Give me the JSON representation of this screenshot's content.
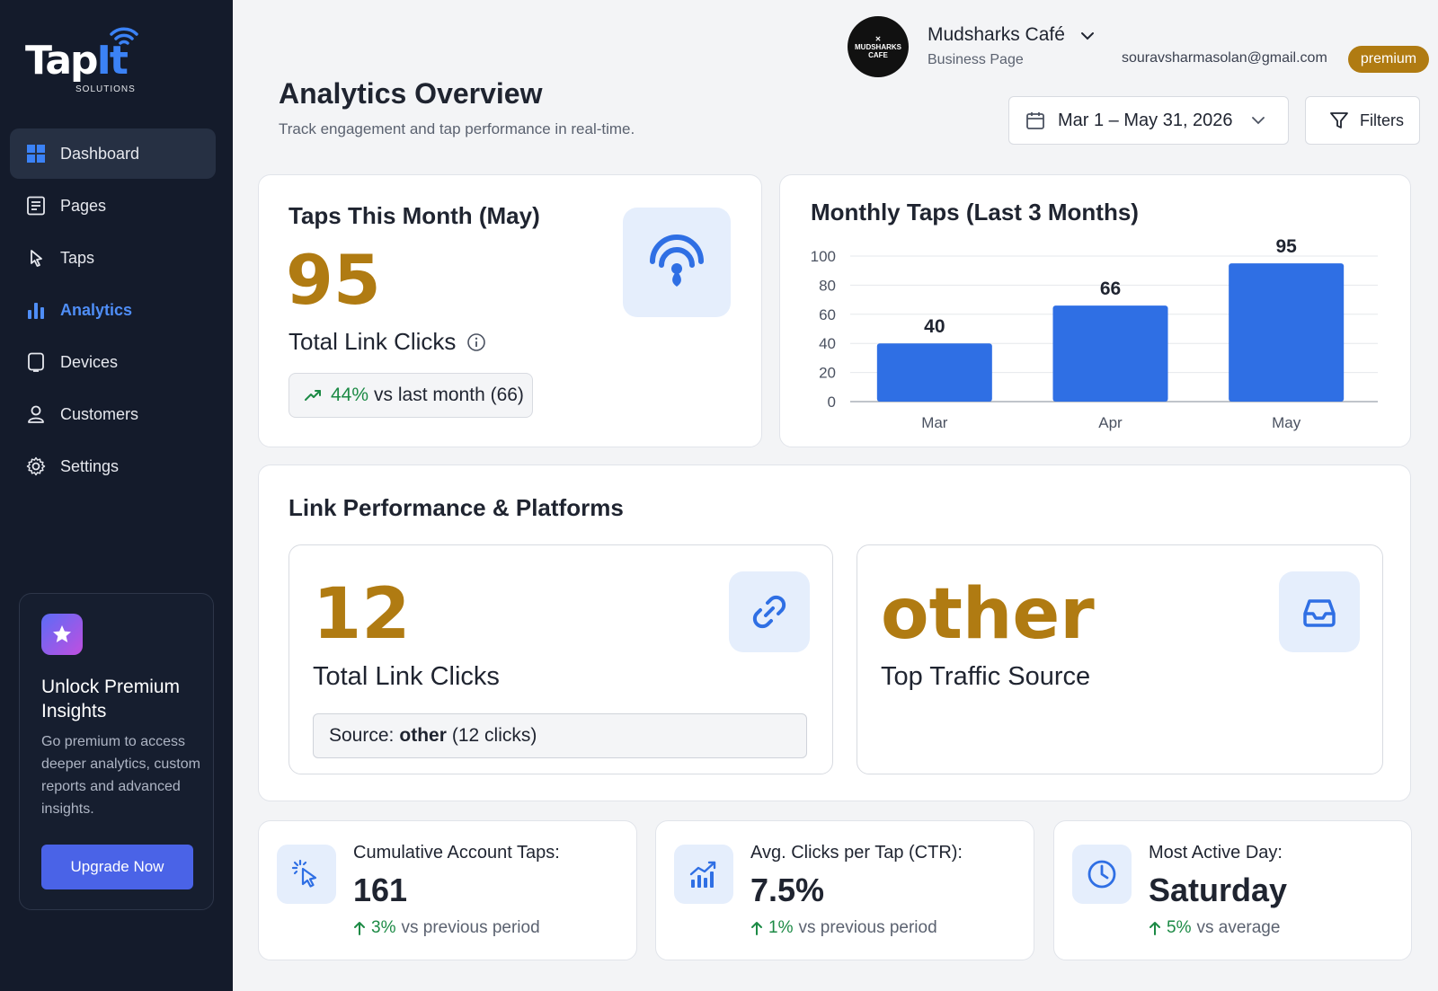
{
  "brand": {
    "name_part1": "Tap",
    "name_part2": "It",
    "tagline": "SOLUTIONS"
  },
  "sidebar": {
    "items": [
      {
        "label": "Dashboard",
        "icon": "grid-icon"
      },
      {
        "label": "Pages",
        "icon": "pages-icon"
      },
      {
        "label": "Taps",
        "icon": "pointer-icon"
      },
      {
        "label": "Analytics",
        "icon": "bar-chart-icon"
      },
      {
        "label": "Devices",
        "icon": "device-icon"
      },
      {
        "label": "Customers",
        "icon": "user-icon"
      },
      {
        "label": "Settings",
        "icon": "gear-icon"
      }
    ],
    "promo": {
      "title": "Unlock Premium Insights",
      "text": "Go premium to access deeper analytics, custom reports and advanced insights.",
      "button_label": "Upgrade Now"
    }
  },
  "header": {
    "avatar_text_line1": "MUDSHARKS",
    "avatar_text_line2": "CAFE",
    "business_name": "Mudsharks Café",
    "business_type": "Business Page",
    "email": "souravsharmasolan@gmail.com",
    "plan_badge": "premium"
  },
  "page": {
    "title": "Analytics Overview",
    "subtitle": "Track engagement and tap performance in real-time.",
    "date_range": "Mar 1 – May 31, 2026",
    "filters_label": "Filters"
  },
  "taps_card": {
    "title": "Taps This Month (May)",
    "value": "95",
    "label": "Total Link Clicks",
    "trend_pct": "44%",
    "trend_text": "vs last month (66)"
  },
  "chart_data": {
    "type": "bar",
    "title": "Monthly Taps (Last 3 Months)",
    "categories": [
      "Mar",
      "Apr",
      "May"
    ],
    "values": [
      40,
      66,
      95
    ],
    "ylim": [
      0,
      100
    ],
    "yticks": [
      0,
      20,
      40,
      60,
      80,
      100
    ],
    "grid": true,
    "bar_color": "#2f6fe4"
  },
  "links_card": {
    "title": "Link Performance & Platforms",
    "clicks_value": "12",
    "clicks_label": "Total Link Clicks",
    "source_prefix": "Source:",
    "source_name": "other",
    "source_suffix": "(12 clicks)",
    "top_source_value": "other",
    "top_source_label": "Top Traffic Source"
  },
  "stats": {
    "cumulative": {
      "label": "Cumulative Account Taps:",
      "value": "161",
      "trend": "3%",
      "trend_text": "vs previous period"
    },
    "ctr": {
      "label": "Avg. Clicks per Tap (CTR):",
      "value": "7.5%",
      "trend": "1%",
      "trend_text": "vs previous period"
    },
    "active_day": {
      "label": "Most Active Day:",
      "value": "Saturday",
      "trend": "5%",
      "trend_text": "vs average"
    }
  },
  "colors": {
    "sidebar_bg": "#141b2b",
    "accent_blue": "#2f6fe4",
    "gold": "#b07b12",
    "positive": "#1c8a45"
  }
}
